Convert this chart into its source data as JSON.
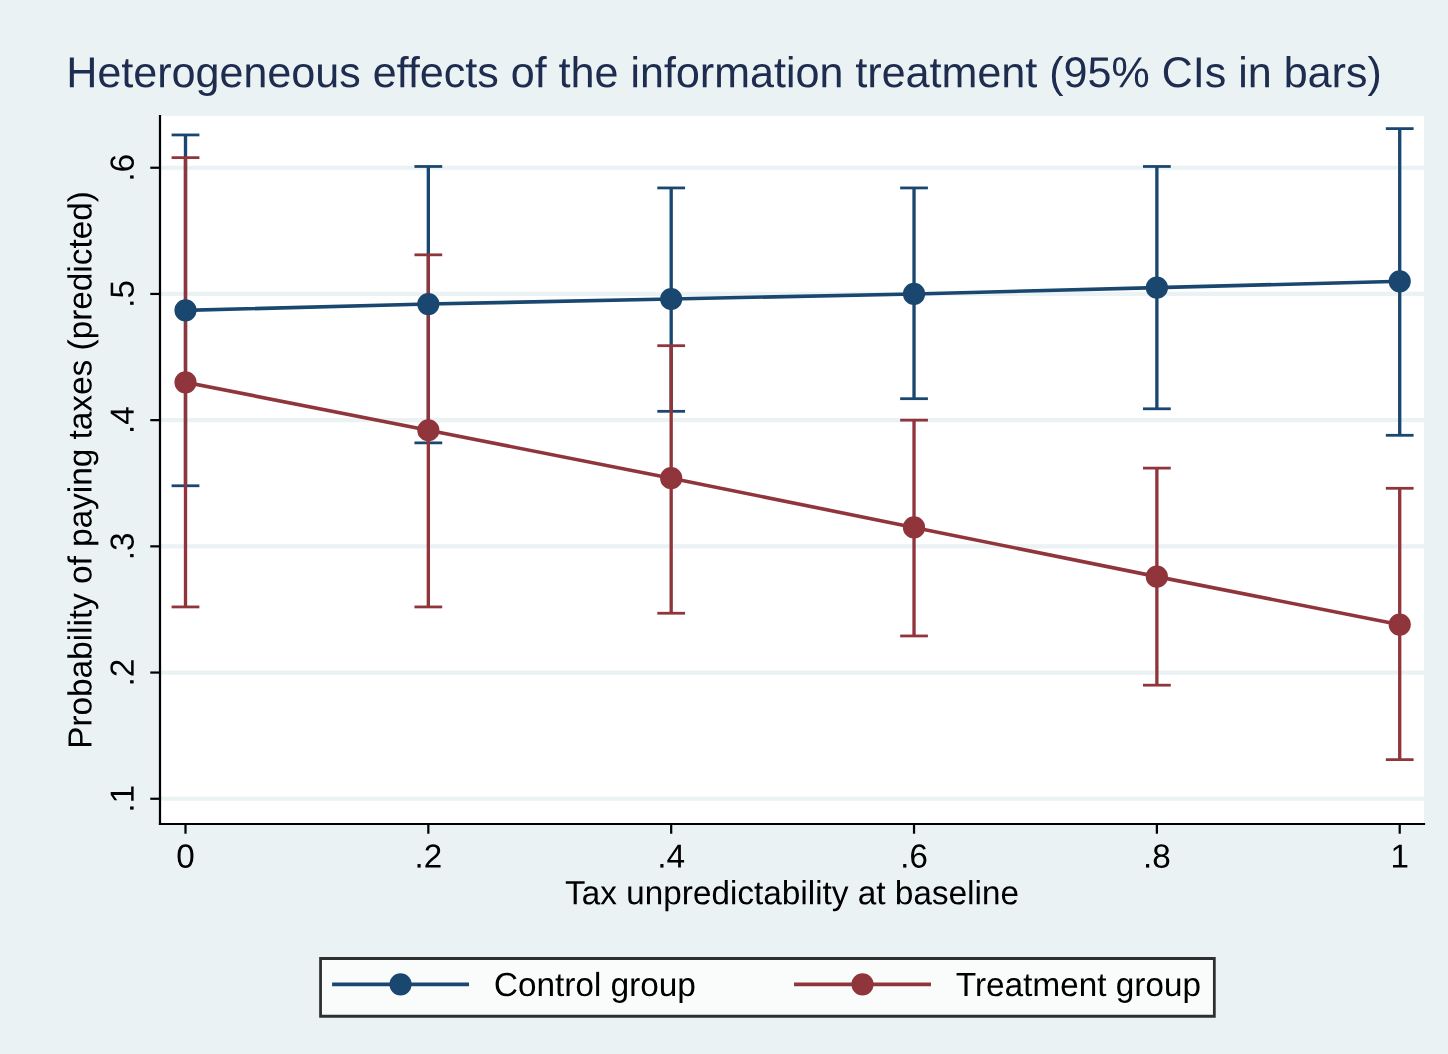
{
  "chart_data": {
    "type": "line",
    "title": "Heterogeneous effects of the information treatment (95% CIs in bars)",
    "xlabel": "Tax unpredictability at baseline",
    "ylabel": "Probability of paying taxes (predicted)",
    "x": [
      0,
      0.2,
      0.4,
      0.6,
      0.8,
      1
    ],
    "series": [
      {
        "name": "Control group",
        "color": "#1a476f",
        "values": [
          0.487,
          0.492,
          0.496,
          0.5,
          0.505,
          0.51
        ],
        "errors": [
          [
            0.348,
            0.626
          ],
          [
            0.382,
            0.601
          ],
          [
            0.407,
            0.584
          ],
          [
            0.417,
            0.584
          ],
          [
            0.409,
            0.601
          ],
          [
            0.388,
            0.631
          ]
        ]
      },
      {
        "name": "Treatment group",
        "color": "#90353b",
        "values": [
          0.43,
          0.392,
          0.354,
          0.315,
          0.276,
          0.238
        ],
        "errors": [
          [
            0.252,
            0.608
          ],
          [
            0.252,
            0.531
          ],
          [
            0.247,
            0.459
          ],
          [
            0.229,
            0.4
          ],
          [
            0.19,
            0.362
          ],
          [
            0.131,
            0.346
          ]
        ]
      }
    ],
    "xlim": [
      -0.021,
      1.02
    ],
    "ylim": [
      0.08,
      0.641
    ],
    "xticks": [
      0,
      {
        "value": 0.2,
        "label": ".2"
      },
      {
        "value": 0.4,
        "label": ".4"
      },
      {
        "value": 0.6,
        "label": ".6"
      },
      {
        "value": 0.8,
        "label": ".8"
      },
      1
    ],
    "yticks": [
      {
        "value": 0.1,
        "label": ".1"
      },
      {
        "value": 0.2,
        "label": ".2"
      },
      {
        "value": 0.3,
        "label": ".3"
      },
      {
        "value": 0.4,
        "label": ".4"
      },
      {
        "value": 0.5,
        "label": ".5"
      },
      {
        "value": 0.6,
        "label": ".6"
      }
    ],
    "grid": "y",
    "legend": "bottom",
    "marker": "circle",
    "line_style": "solid"
  }
}
